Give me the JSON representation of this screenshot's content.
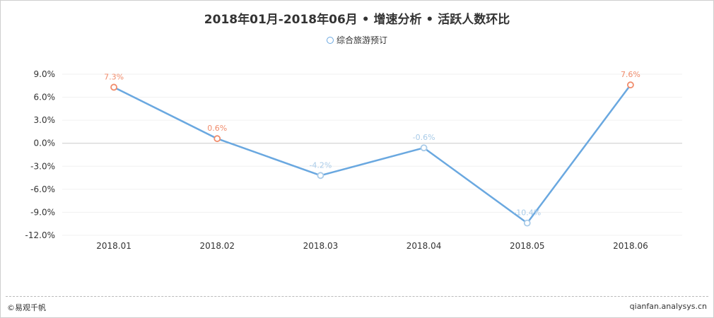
{
  "chart_data": {
    "type": "line",
    "title": "2018年01月-2018年06月 • 增速分析 • 活跃人数环比",
    "categories": [
      "2018.01",
      "2018.02",
      "2018.03",
      "2018.04",
      "2018.05",
      "2018.06"
    ],
    "series": [
      {
        "name": "综合旅游预订",
        "values": [
          7.3,
          0.6,
          -4.2,
          -0.6,
          -10.4,
          7.6
        ],
        "data_labels": [
          "7.3%",
          "0.6%",
          "-4.2%",
          "-0.6%",
          "-10.4%",
          "7.6%"
        ]
      }
    ],
    "ylim": [
      -12,
      9
    ],
    "yticks": [
      9,
      6,
      3,
      0,
      -3,
      -6,
      -9,
      -12
    ],
    "ytick_labels": [
      "9.0%",
      "6.0%",
      "3.0%",
      "0.0%",
      "-3.0%",
      "-6.0%",
      "-9.0%",
      "-12.0%"
    ],
    "xlabel": "",
    "ylabel": "",
    "grid": true,
    "legend_position": "top-center",
    "colors": {
      "line": "#6aa8e0",
      "positive_marker": "#f08c6c",
      "negative_marker": "#a9cbe8",
      "negative_label": "#a9cbe8",
      "positive_label": "#f08c6c"
    }
  },
  "footer": {
    "brand": "©易观千帆",
    "site": "qianfan.analysys.cn"
  }
}
